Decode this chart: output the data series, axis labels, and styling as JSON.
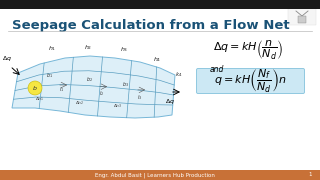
{
  "title": "Seepage Calculation from a Flow Net",
  "title_color": "#1a5276",
  "title_fontsize": 9.5,
  "slide_bg": "#ffffff",
  "formula1": "$\\Delta q = kH\\left(\\dfrac{n}{N_d}\\right)$",
  "formula2_label": "and",
  "formula2": "$q = kH\\left(\\dfrac{N_f}{N_d}\\right)n$",
  "formula2_box_color": "#cce8f4",
  "footer_text": "Engr. Abdul Basit | Learners Hub Production",
  "footer_bg": "#c87137",
  "footer_color": "#ffffff",
  "footer_fontsize": 4,
  "top_bar_color": "#1a1a1a",
  "flow_fill": "#daeef8",
  "flow_edge": "#6ab0d4",
  "grid_color": "#5a9ec0"
}
